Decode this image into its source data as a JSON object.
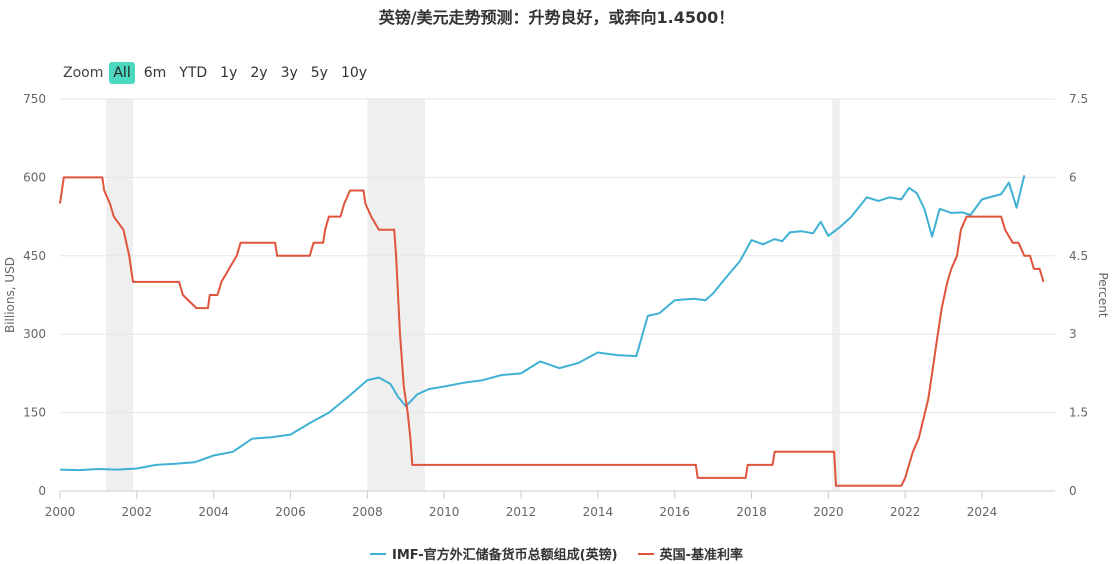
{
  "title": "英镑/美元走势预测：升势良好，或奔向1.4500！",
  "zoom": {
    "label": "Zoom",
    "buttons": [
      "All",
      "6m",
      "YTD",
      "1y",
      "2y",
      "3y",
      "5y",
      "10y"
    ],
    "active": "All"
  },
  "colors": {
    "reserves": "#3fb1d3",
    "rate": "#e0533c",
    "recession": "#efefef",
    "grid": "#e6e6e6"
  },
  "chart_data": {
    "type": "line",
    "x_range": [
      2000,
      2025.9
    ],
    "x_ticks": [
      "2000",
      "2002",
      "2004",
      "2006",
      "2008",
      "2010",
      "2012",
      "2014",
      "2016",
      "2018",
      "2020",
      "2022",
      "2024"
    ],
    "y_left": {
      "label": "Billions, USD",
      "range": [
        0,
        750
      ],
      "ticks": [
        "0",
        "150",
        "300",
        "450",
        "600",
        "750"
      ]
    },
    "y_right": {
      "label": "Percent",
      "range": [
        0,
        7.5
      ],
      "ticks": [
        "0",
        "1.5",
        "3",
        "4.5",
        "6",
        "7.5"
      ]
    },
    "recessions": [
      [
        2001.2,
        2001.9
      ],
      [
        2008.0,
        2009.5
      ],
      [
        2020.1,
        2020.3
      ]
    ],
    "series": [
      {
        "name": "IMF-官方外汇储备货币总额组成(英镑)",
        "axis": "left",
        "points": [
          [
            2000,
            41
          ],
          [
            2000.5,
            40
          ],
          [
            2001,
            42
          ],
          [
            2001.5,
            41
          ],
          [
            2002,
            43
          ],
          [
            2002.5,
            50
          ],
          [
            2003,
            52
          ],
          [
            2003.5,
            55
          ],
          [
            2004,
            68
          ],
          [
            2004.5,
            75
          ],
          [
            2005,
            100
          ],
          [
            2005.5,
            103
          ],
          [
            2006,
            108
          ],
          [
            2006.5,
            130
          ],
          [
            2007,
            150
          ],
          [
            2007.5,
            180
          ],
          [
            2008,
            212
          ],
          [
            2008.3,
            217
          ],
          [
            2008.6,
            205
          ],
          [
            2008.8,
            180
          ],
          [
            2009,
            162
          ],
          [
            2009.3,
            185
          ],
          [
            2009.6,
            195
          ],
          [
            2010,
            200
          ],
          [
            2010.5,
            207
          ],
          [
            2011,
            212
          ],
          [
            2011.5,
            222
          ],
          [
            2012,
            225
          ],
          [
            2012.5,
            248
          ],
          [
            2013,
            235
          ],
          [
            2013.5,
            245
          ],
          [
            2014,
            265
          ],
          [
            2014.5,
            260
          ],
          [
            2015,
            258
          ],
          [
            2015.3,
            335
          ],
          [
            2015.6,
            340
          ],
          [
            2016,
            365
          ],
          [
            2016.5,
            368
          ],
          [
            2016.8,
            365
          ],
          [
            2017,
            378
          ],
          [
            2017.3,
            405
          ],
          [
            2017.7,
            440
          ],
          [
            2018,
            480
          ],
          [
            2018.3,
            472
          ],
          [
            2018.6,
            482
          ],
          [
            2018.8,
            478
          ],
          [
            2019,
            495
          ],
          [
            2019.3,
            497
          ],
          [
            2019.6,
            493
          ],
          [
            2019.8,
            515
          ],
          [
            2020,
            488
          ],
          [
            2020.3,
            505
          ],
          [
            2020.6,
            525
          ],
          [
            2021,
            562
          ],
          [
            2021.3,
            555
          ],
          [
            2021.6,
            562
          ],
          [
            2021.9,
            558
          ],
          [
            2022.1,
            580
          ],
          [
            2022.3,
            570
          ],
          [
            2022.5,
            540
          ],
          [
            2022.7,
            487
          ],
          [
            2022.9,
            540
          ],
          [
            2023.2,
            532
          ],
          [
            2023.5,
            533
          ],
          [
            2023.7,
            528
          ],
          [
            2024,
            558
          ],
          [
            2024.5,
            568
          ],
          [
            2024.7,
            590
          ],
          [
            2024.9,
            542
          ],
          [
            2025.1,
            604
          ]
        ]
      },
      {
        "name": "英国-基准利率",
        "axis": "right",
        "points": [
          [
            2000,
            5.5
          ],
          [
            2000.1,
            6.0
          ],
          [
            2001.1,
            6.0
          ],
          [
            2001.15,
            5.75
          ],
          [
            2001.3,
            5.5
          ],
          [
            2001.4,
            5.25
          ],
          [
            2001.65,
            5.0
          ],
          [
            2001.8,
            4.5
          ],
          [
            2001.9,
            4.0
          ],
          [
            2003.1,
            4.0
          ],
          [
            2003.2,
            3.75
          ],
          [
            2003.55,
            3.5
          ],
          [
            2003.85,
            3.5
          ],
          [
            2003.9,
            3.75
          ],
          [
            2004.1,
            3.75
          ],
          [
            2004.2,
            4.0
          ],
          [
            2004.4,
            4.25
          ],
          [
            2004.6,
            4.5
          ],
          [
            2004.7,
            4.75
          ],
          [
            2005.6,
            4.75
          ],
          [
            2005.65,
            4.5
          ],
          [
            2006.5,
            4.5
          ],
          [
            2006.6,
            4.75
          ],
          [
            2006.85,
            4.75
          ],
          [
            2006.9,
            5.0
          ],
          [
            2007.0,
            5.25
          ],
          [
            2007.3,
            5.25
          ],
          [
            2007.4,
            5.5
          ],
          [
            2007.55,
            5.75
          ],
          [
            2007.9,
            5.75
          ],
          [
            2007.95,
            5.5
          ],
          [
            2008.1,
            5.25
          ],
          [
            2008.3,
            5.0
          ],
          [
            2008.7,
            5.0
          ],
          [
            2008.75,
            4.5
          ],
          [
            2008.85,
            3.0
          ],
          [
            2008.95,
            2.0
          ],
          [
            2009.05,
            1.5
          ],
          [
            2009.12,
            1.0
          ],
          [
            2009.17,
            0.5
          ],
          [
            2016.55,
            0.5
          ],
          [
            2016.6,
            0.25
          ],
          [
            2017.85,
            0.25
          ],
          [
            2017.9,
            0.5
          ],
          [
            2018.55,
            0.5
          ],
          [
            2018.6,
            0.75
          ],
          [
            2020.15,
            0.75
          ],
          [
            2020.2,
            0.1
          ],
          [
            2021.9,
            0.1
          ],
          [
            2022.0,
            0.25
          ],
          [
            2022.1,
            0.5
          ],
          [
            2022.2,
            0.75
          ],
          [
            2022.35,
            1.0
          ],
          [
            2022.6,
            1.75
          ],
          [
            2022.7,
            2.25
          ],
          [
            2022.85,
            3.0
          ],
          [
            2022.95,
            3.5
          ],
          [
            2023.1,
            4.0
          ],
          [
            2023.2,
            4.25
          ],
          [
            2023.35,
            4.5
          ],
          [
            2023.45,
            5.0
          ],
          [
            2023.6,
            5.25
          ],
          [
            2024.5,
            5.25
          ],
          [
            2024.6,
            5.0
          ],
          [
            2024.8,
            4.75
          ],
          [
            2024.95,
            4.75
          ],
          [
            2025.1,
            4.5
          ],
          [
            2025.25,
            4.5
          ],
          [
            2025.35,
            4.25
          ],
          [
            2025.5,
            4.25
          ],
          [
            2025.6,
            4.0
          ]
        ]
      }
    ],
    "legend": {
      "position": "bottom-center"
    }
  }
}
